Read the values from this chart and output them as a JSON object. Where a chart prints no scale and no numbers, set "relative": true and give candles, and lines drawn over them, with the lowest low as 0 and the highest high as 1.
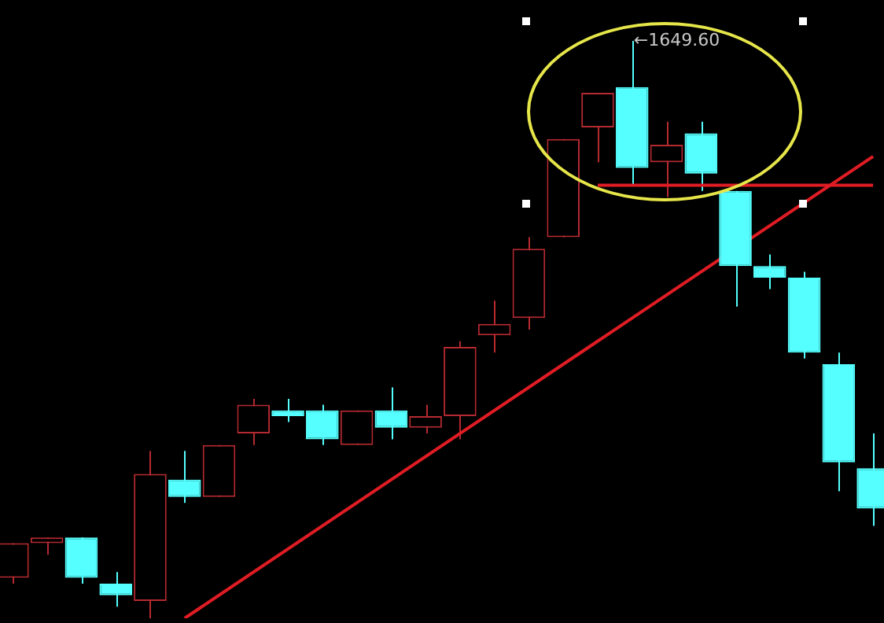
{
  "chart_data": {
    "type": "candlestick",
    "relative": true,
    "categories": [
      null,
      null,
      null,
      null,
      null,
      null,
      null,
      null,
      null,
      null,
      null,
      null,
      null,
      null,
      null,
      null,
      null,
      null,
      null,
      null,
      null,
      null,
      null,
      null,
      null,
      null
    ],
    "ohlc": [
      [
        0.07,
        0.13,
        0.06,
        0.13
      ],
      [
        0.13,
        0.14,
        0.11,
        0.14
      ],
      [
        0.14,
        0.14,
        0.06,
        0.07
      ],
      [
        0.06,
        0.08,
        0.02,
        0.04
      ],
      [
        0.03,
        0.29,
        0,
        0.25
      ],
      [
        0.24,
        0.29,
        0.2,
        0.21
      ],
      [
        0.21,
        0.3,
        0.21,
        0.3
      ],
      [
        0.32,
        0.38,
        0.3,
        0.37
      ],
      [
        0.36,
        0.38,
        0.34,
        0.35
      ],
      [
        0.36,
        0.37,
        0.3,
        0.31
      ],
      [
        0.3,
        0.36,
        0.3,
        0.36
      ],
      [
        0.36,
        0.4,
        0.31,
        0.33
      ],
      [
        0.33,
        0.37,
        0.32,
        0.35
      ],
      [
        0.35,
        0.48,
        0.31,
        0.47
      ],
      [
        0.49,
        0.55,
        0.46,
        0.51
      ],
      [
        0.52,
        0.66,
        0.5,
        0.64
      ],
      [
        0.66,
        0.83,
        0.66,
        0.83
      ],
      [
        0.85,
        0.91,
        0.79,
        0.91
      ],
      [
        0.92,
        1,
        0.75,
        0.78
      ],
      [
        0.79,
        0.86,
        0.73,
        0.82
      ],
      [
        0.84,
        0.86,
        0.74,
        0.77
      ],
      [
        0.74,
        0.74,
        0.54,
        0.61
      ],
      [
        0.61,
        0.63,
        0.57,
        0.59
      ],
      [
        0.59,
        0.6,
        0.45,
        0.46
      ],
      [
        0.44,
        0.46,
        0.22,
        0.27
      ],
      [
        0.26,
        0.32,
        0.16,
        0.19
      ]
    ],
    "colors": [
      "#b52a30",
      "#b52a30",
      "#55ffff",
      "#55ffff",
      "#b52a30",
      "#55ffff",
      "#b52a30",
      "#b52a30",
      "#55ffff",
      "#55ffff",
      "#b52a30",
      "#55ffff",
      "#b52a30",
      "#b52a30",
      "#b52a30",
      "#b52a30",
      "#b52a30",
      "#b52a30",
      "#55ffff",
      "#b52a30",
      "#55ffff",
      "#55ffff",
      "#55ffff",
      "#55ffff",
      "#55ffff",
      "#55ffff"
    ],
    "series": [
      {
        "type": "line",
        "color": "#e01c24",
        "values": [
          null,
          null,
          null,
          null,
          null,
          0,
          null,
          null,
          null,
          null,
          null,
          null,
          null,
          null,
          null,
          null,
          null,
          null,
          null,
          null,
          null,
          null,
          null,
          null,
          null,
          0.8
        ]
      },
      {
        "type": "line",
        "color": "#e01c24",
        "values": [
          null,
          null,
          null,
          null,
          null,
          null,
          null,
          null,
          null,
          null,
          null,
          null,
          null,
          null,
          null,
          null,
          null,
          0.75,
          null,
          null,
          null,
          null,
          null,
          null,
          null,
          0.75
        ]
      }
    ],
    "annotations": [
      "←1649.60"
    ]
  }
}
